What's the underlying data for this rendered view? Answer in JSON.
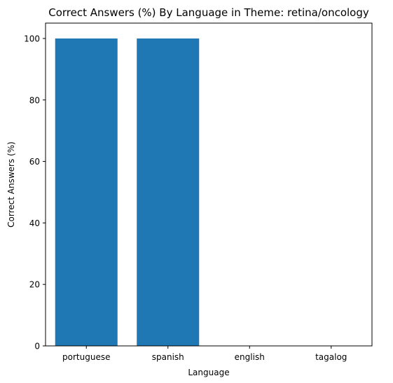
{
  "chart_data": {
    "type": "bar",
    "title": "Correct Answers (%) By Language in Theme: retina/oncology",
    "xlabel": "Language",
    "ylabel": "Correct Answers (%)",
    "categories": [
      "portuguese",
      "spanish",
      "english",
      "tagalog"
    ],
    "values": [
      100,
      100,
      0,
      0
    ],
    "ylim": [
      0,
      105
    ],
    "yticks": [
      0,
      20,
      40,
      60,
      80,
      100
    ],
    "grid": false,
    "legend": "none",
    "colors": {
      "bar": "#1f77b4",
      "axis": "#000000",
      "background": "#ffffff"
    }
  }
}
